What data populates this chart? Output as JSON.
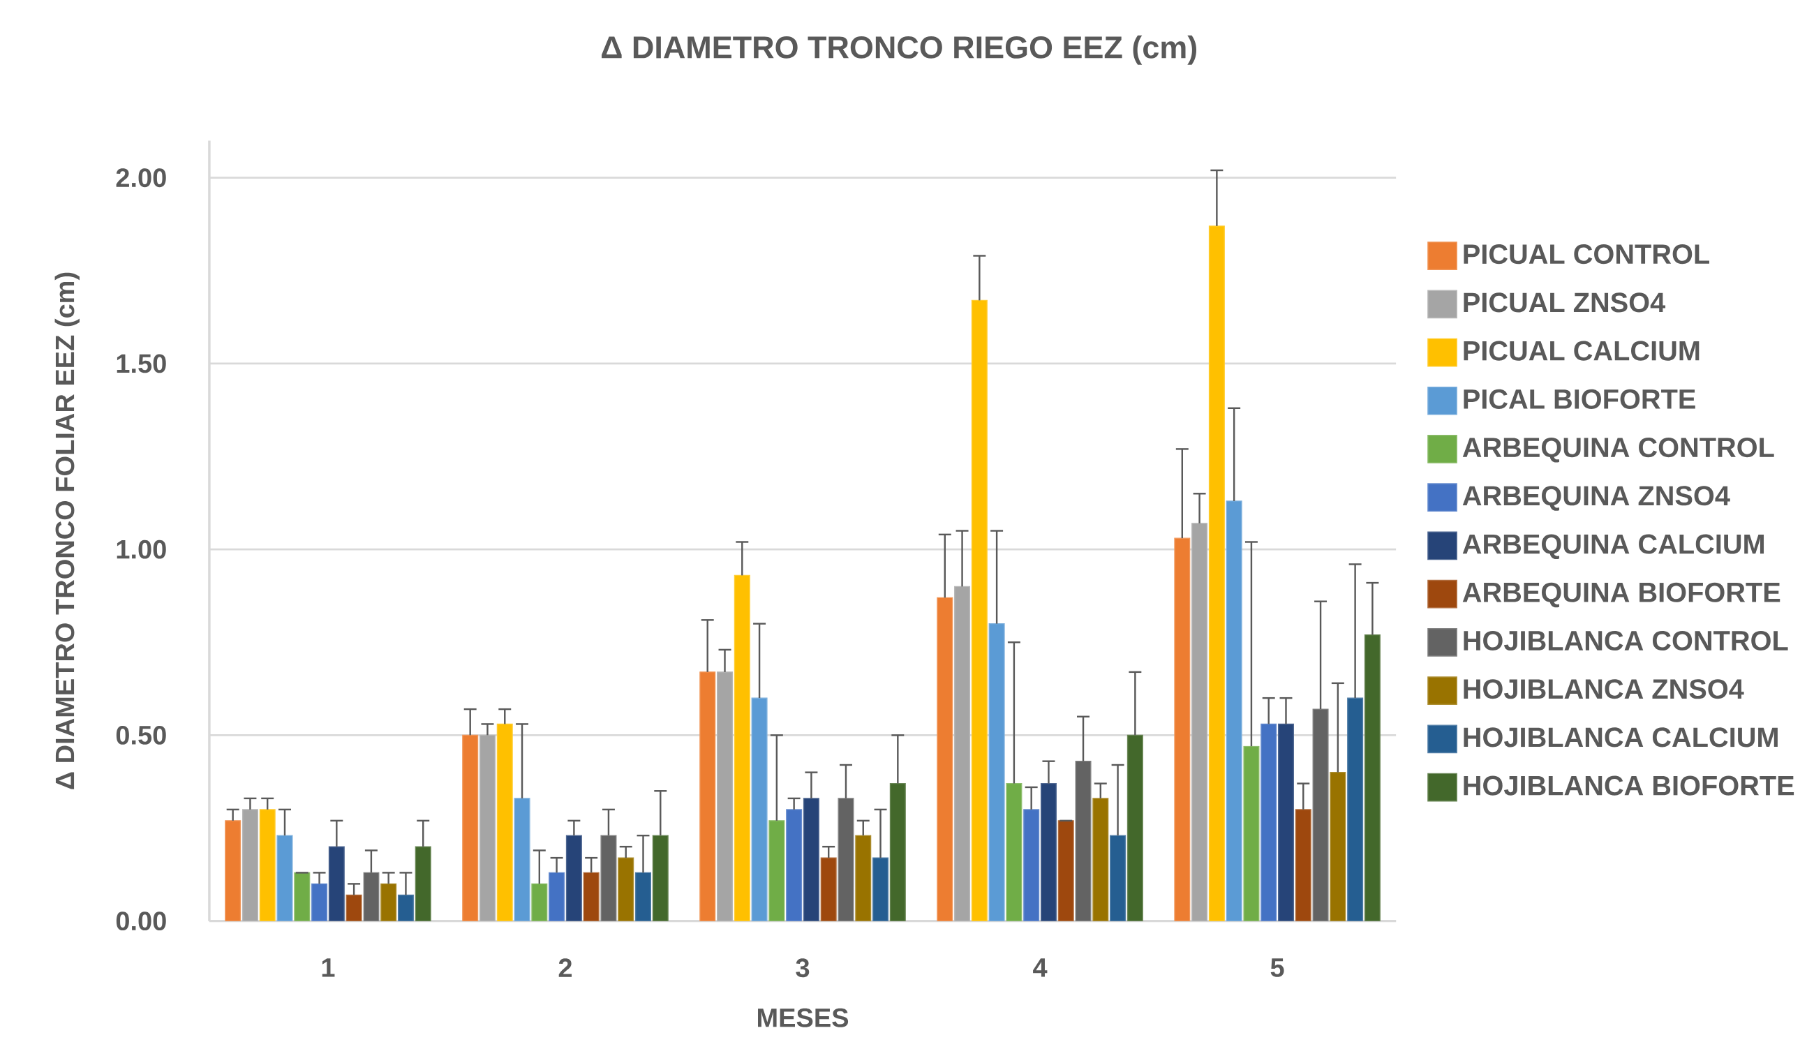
{
  "chart_data": {
    "type": "bar",
    "title": "Δ DIAMETRO TRONCO RIEGO EEZ (cm)",
    "xlabel": "MESES",
    "ylabel": "Δ DIAMETRO TRONCO FOLIAR EEZ (cm)",
    "categories": [
      "1",
      "2",
      "3",
      "4",
      "5"
    ],
    "ylim": [
      0,
      2.1
    ],
    "yticks": [
      {
        "value": 0,
        "label": "0.00"
      },
      {
        "value": 0.5,
        "label": "0.50"
      },
      {
        "value": 1,
        "label": "1.00"
      },
      {
        "value": 1.5,
        "label": "1.50"
      },
      {
        "value": 2,
        "label": "2.00"
      }
    ],
    "grid": "y",
    "legend": "right",
    "series": [
      {
        "name": "PICUAL CONTROL",
        "color": "#ed7d31",
        "values": [
          0.27,
          0.5,
          0.67,
          0.87,
          1.03
        ],
        "errors": [
          [
            0.27,
            0.3
          ],
          [
            0.5,
            0.57
          ],
          [
            0.67,
            0.81
          ],
          [
            0.87,
            1.04
          ],
          [
            1.03,
            1.27
          ]
        ]
      },
      {
        "name": "PICUAL ZNSO4",
        "color": "#a5a5a5",
        "values": [
          0.3,
          0.5,
          0.67,
          0.9,
          1.07
        ],
        "errors": [
          [
            0.3,
            0.33
          ],
          [
            0.5,
            0.53
          ],
          [
            0.67,
            0.73
          ],
          [
            0.9,
            1.05
          ],
          [
            1.07,
            1.15
          ]
        ]
      },
      {
        "name": "PICUAL CALCIUM",
        "color": "#ffc000",
        "values": [
          0.3,
          0.53,
          0.93,
          1.67,
          1.87
        ],
        "errors": [
          [
            0.3,
            0.33
          ],
          [
            0.53,
            0.57
          ],
          [
            0.93,
            1.02
          ],
          [
            1.67,
            1.79
          ],
          [
            1.87,
            2.02
          ]
        ]
      },
      {
        "name": "PICAL BIOFORTE",
        "color": "#5b9bd5",
        "values": [
          0.23,
          0.33,
          0.6,
          0.8,
          1.13
        ],
        "errors": [
          [
            0.23,
            0.3
          ],
          [
            0.33,
            0.53
          ],
          [
            0.6,
            0.8
          ],
          [
            0.8,
            1.05
          ],
          [
            1.13,
            1.38
          ]
        ]
      },
      {
        "name": "ARBEQUINA CONTROL",
        "color": "#70ad47",
        "values": [
          0.13,
          0.1,
          0.27,
          0.37,
          0.47
        ],
        "errors": [
          [
            0.13,
            0.13
          ],
          [
            0.1,
            0.19
          ],
          [
            0.27,
            0.5
          ],
          [
            0.37,
            0.75
          ],
          [
            0.47,
            1.02
          ]
        ]
      },
      {
        "name": "ARBEQUINA ZNSO4",
        "color": "#4472c4",
        "values": [
          0.1,
          0.13,
          0.3,
          0.3,
          0.53
        ],
        "errors": [
          [
            0.1,
            0.13
          ],
          [
            0.13,
            0.17
          ],
          [
            0.3,
            0.33
          ],
          [
            0.3,
            0.36
          ],
          [
            0.53,
            0.6
          ]
        ]
      },
      {
        "name": "ARBEQUINA CALCIUM",
        "color": "#264478",
        "values": [
          0.2,
          0.23,
          0.33,
          0.37,
          0.53
        ],
        "errors": [
          [
            0.2,
            0.27
          ],
          [
            0.23,
            0.27
          ],
          [
            0.33,
            0.4
          ],
          [
            0.37,
            0.43
          ],
          [
            0.53,
            0.6
          ]
        ]
      },
      {
        "name": "ARBEQUINA BIOFORTE",
        "color": "#9e480e",
        "values": [
          0.07,
          0.13,
          0.17,
          0.27,
          0.3
        ],
        "errors": [
          [
            0.07,
            0.1
          ],
          [
            0.13,
            0.17
          ],
          [
            0.17,
            0.2
          ],
          [
            0.27,
            0.27
          ],
          [
            0.3,
            0.37
          ]
        ]
      },
      {
        "name": "HOJIBLANCA CONTROL",
        "color": "#636363",
        "values": [
          0.13,
          0.23,
          0.33,
          0.43,
          0.57
        ],
        "errors": [
          [
            0.13,
            0.19
          ],
          [
            0.23,
            0.3
          ],
          [
            0.33,
            0.42
          ],
          [
            0.43,
            0.55
          ],
          [
            0.57,
            0.86
          ]
        ]
      },
      {
        "name": "HOJIBLANCA ZNSO4",
        "color": "#997300",
        "values": [
          0.1,
          0.17,
          0.23,
          0.33,
          0.4
        ],
        "errors": [
          [
            0.1,
            0.13
          ],
          [
            0.17,
            0.2
          ],
          [
            0.23,
            0.27
          ],
          [
            0.33,
            0.37
          ],
          [
            0.4,
            0.64
          ]
        ]
      },
      {
        "name": "HOJIBLANCA CALCIUM",
        "color": "#255e91",
        "values": [
          0.07,
          0.13,
          0.17,
          0.23,
          0.6
        ],
        "errors": [
          [
            0.07,
            0.13
          ],
          [
            0.13,
            0.23
          ],
          [
            0.17,
            0.3
          ],
          [
            0.23,
            0.42
          ],
          [
            0.6,
            0.96
          ]
        ]
      },
      {
        "name": "HOJIBLANCA BIOFORTE",
        "color": "#43682b",
        "values": [
          0.2,
          0.23,
          0.37,
          0.5,
          0.77
        ],
        "errors": [
          [
            0.2,
            0.27
          ],
          [
            0.23,
            0.35
          ],
          [
            0.37,
            0.5
          ],
          [
            0.5,
            0.67
          ],
          [
            0.77,
            0.91
          ]
        ]
      }
    ]
  }
}
